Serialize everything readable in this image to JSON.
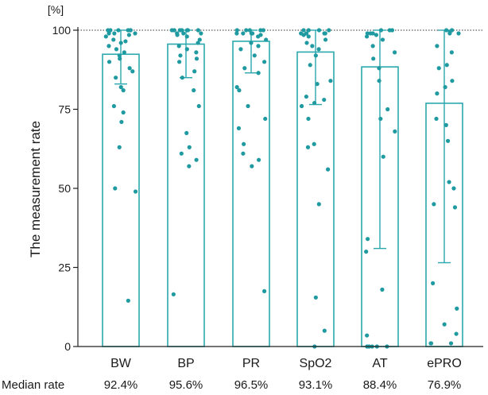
{
  "chart_data": {
    "type": "bar",
    "ylabel": "The measurement rate",
    "yunit": "[%]",
    "ylim": [
      0,
      100
    ],
    "yticks": [
      "0",
      "25",
      "50",
      "75",
      "100"
    ],
    "reference_line": 100,
    "categories": [
      "BW",
      "BP",
      "PR",
      "SpO2",
      "AT",
      "ePRO"
    ],
    "values": [
      92.4,
      95.6,
      96.5,
      93.1,
      88.4,
      76.9
    ],
    "error_low": [
      83,
      85,
      86.5,
      76.5,
      31,
      26.5
    ],
    "error_high": [
      100,
      100,
      100,
      100,
      100,
      100
    ],
    "median_row_label": "Median rate",
    "median_labels": [
      "92.4%",
      "95.6%",
      "96.5%",
      "93.1%",
      "88.4%",
      "76.9%"
    ],
    "bar_color": "#2aa8ad",
    "point_color": "#1f9aa0",
    "points": [
      [
        100,
        100,
        100,
        100,
        100,
        100,
        99,
        99,
        99,
        98.5,
        98,
        97,
        96.5,
        96,
        95,
        94,
        93,
        92,
        91,
        90,
        88,
        87,
        85,
        82,
        81,
        76,
        74,
        71,
        63,
        50,
        49,
        14.5
      ],
      [
        100,
        100,
        100,
        100,
        100,
        100,
        100,
        99,
        99,
        99,
        98.5,
        98,
        97,
        96,
        95,
        94,
        93,
        92,
        91,
        90,
        87,
        85,
        81,
        76,
        67.5,
        63,
        61,
        59,
        57,
        16.5
      ],
      [
        100,
        100,
        100,
        100,
        100,
        99,
        99,
        99,
        99,
        98.5,
        98,
        97,
        96,
        95,
        94,
        92,
        90,
        88,
        86.5,
        82,
        81,
        76,
        72,
        69,
        64,
        61,
        59,
        57,
        17.5
      ],
      [
        100,
        100,
        100,
        100,
        99,
        99,
        99,
        99,
        98.5,
        98,
        97,
        96,
        95,
        94,
        92,
        89,
        84,
        83,
        79,
        78,
        77,
        76,
        72,
        64,
        63,
        56,
        45,
        15.5,
        5,
        0
      ],
      [
        100,
        100,
        100,
        99,
        99,
        99,
        98.5,
        98,
        97,
        95,
        93,
        91,
        88,
        84,
        75,
        72,
        68,
        60,
        34,
        30,
        18,
        3.5,
        0,
        0,
        0,
        0,
        0
      ],
      [
        100,
        100,
        99.5,
        99,
        99,
        95,
        93,
        89,
        88,
        84,
        82,
        80,
        72,
        70,
        65,
        52,
        50,
        45,
        44,
        20,
        12,
        7,
        4,
        1,
        1,
        1
      ]
    ]
  }
}
